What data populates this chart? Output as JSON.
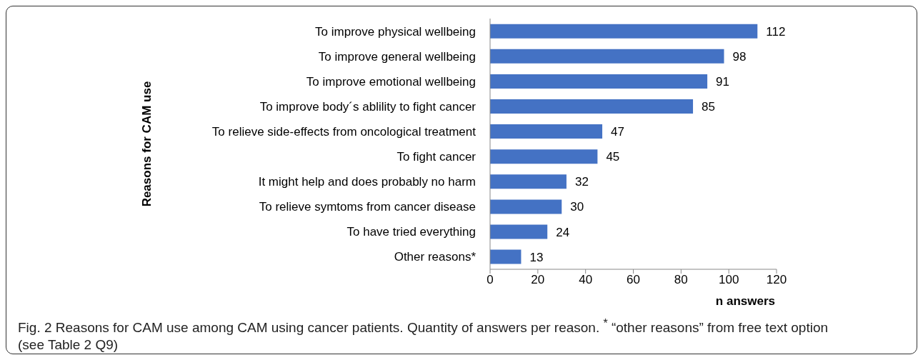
{
  "chart_data": {
    "type": "bar",
    "orientation": "horizontal",
    "ylabel": "Reasons for CAM use",
    "xlabel": "n answers",
    "categories": [
      "To improve physical wellbeing",
      "To improve general wellbeing",
      "To improve emotional wellbeing",
      "To improve body´s ablility to fight cancer",
      "To relieve side-effects from oncological treatment",
      "To fight cancer",
      "It might help and does probably no harm",
      "To relieve symtoms from cancer disease",
      "To have tried everything",
      "Other reasons*"
    ],
    "values": [
      112,
      98,
      91,
      85,
      47,
      45,
      32,
      30,
      24,
      13
    ],
    "color": "#4472c4",
    "data_labels": true,
    "xlim": [
      0,
      120
    ],
    "xticks": [
      0,
      20,
      40,
      60,
      80,
      100,
      120
    ],
    "grid": false,
    "legend": false,
    "annotations": [
      "Fig. 2 Reasons for CAM use among CAM using cancer patients. Quantity of answers per reason. $^{*}$ “other reasons” from free text option (see Table 2 Q9)"
    ]
  }
}
